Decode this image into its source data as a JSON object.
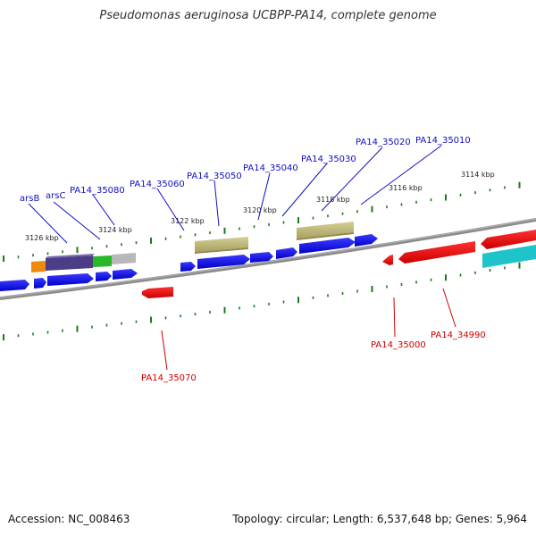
{
  "title": "Pseudomonas aeruginosa UCBPP-PA14, complete genome",
  "footer": {
    "accession": "Accession: NC_008463",
    "topology": "Topology: circular; Length: 6,537,648 bp; Genes: 5,964"
  },
  "colors": {
    "forward_label": "#1010c0",
    "reverse_label": "#cc0000",
    "tick": "#1a7a1a",
    "axis": "#7a7a7a"
  },
  "scale_labels": [
    "3126 kbp",
    "3124 kbp",
    "3122 kbp",
    "3120 kbp",
    "3118 kbp",
    "3116 kbp",
    "3114 kbp"
  ],
  "forward_genes": [
    "arsB",
    "arsC",
    "PA14_35080",
    "PA14_35060",
    "PA14_35050",
    "PA14_35040",
    "PA14_35030",
    "PA14_35020",
    "PA14_35010"
  ],
  "reverse_genes": [
    "PA14_35070",
    "PA14_35000",
    "PA14_34990"
  ]
}
